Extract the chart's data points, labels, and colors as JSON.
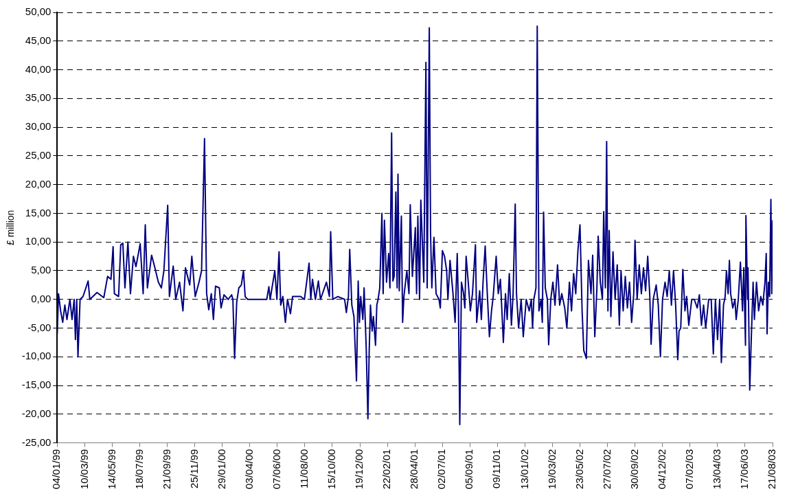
{
  "chart_data": {
    "type": "line",
    "ylabel": "£ million",
    "color": "#000080",
    "grid": "y",
    "legend": false,
    "marker": "none",
    "line_style": "solid",
    "xlim": [
      "1999-01-04",
      "2003-08-21"
    ],
    "xticks": [
      {
        "value": "1999-01-04",
        "label": "04/01/99"
      },
      {
        "value": "1999-03-10",
        "label": "10/03/99"
      },
      {
        "value": "1999-05-14",
        "label": "14/05/99"
      },
      {
        "value": "1999-07-18",
        "label": "18/07/99"
      },
      {
        "value": "1999-09-21",
        "label": "21/09/99"
      },
      {
        "value": "1999-11-25",
        "label": "25/11/99"
      },
      {
        "value": "2000-01-29",
        "label": "29/01/00"
      },
      {
        "value": "2000-04-03",
        "label": "03/04/00"
      },
      {
        "value": "2000-06-07",
        "label": "07/06/00"
      },
      {
        "value": "2000-08-11",
        "label": "11/08/00"
      },
      {
        "value": "2000-10-15",
        "label": "15/10/00"
      },
      {
        "value": "2000-12-19",
        "label": "19/12/00"
      },
      {
        "value": "2001-02-22",
        "label": "22/02/01"
      },
      {
        "value": "2001-04-28",
        "label": "28/04/01"
      },
      {
        "value": "2001-07-02",
        "label": "02/07/01"
      },
      {
        "value": "2001-09-05",
        "label": "05/09/01"
      },
      {
        "value": "2001-11-09",
        "label": "09/11/01"
      },
      {
        "value": "2002-01-13",
        "label": "13/01/02"
      },
      {
        "value": "2002-03-19",
        "label": "19/03/02"
      },
      {
        "value": "2002-05-23",
        "label": "23/05/02"
      },
      {
        "value": "2002-07-27",
        "label": "27/07/02"
      },
      {
        "value": "2002-09-30",
        "label": "30/09/02"
      },
      {
        "value": "2002-12-04",
        "label": "04/12/02"
      },
      {
        "value": "2003-02-07",
        "label": "07/02/03"
      },
      {
        "value": "2003-04-13",
        "label": "13/04/03"
      },
      {
        "value": "2003-06-17",
        "label": "17/06/03"
      },
      {
        "value": "2003-08-21",
        "label": "21/08/03"
      }
    ],
    "ylim": [
      -25,
      50
    ],
    "yticks": [
      {
        "value": -25,
        "label": "-25,00"
      },
      {
        "value": -20,
        "label": "-20,00"
      },
      {
        "value": -15,
        "label": "-15,00"
      },
      {
        "value": -10,
        "label": "-10,00"
      },
      {
        "value": -5,
        "label": "-5,00"
      },
      {
        "value": 0,
        "label": "0,00"
      },
      {
        "value": 5,
        "label": "5,00"
      },
      {
        "value": 10,
        "label": "10,00"
      },
      {
        "value": 15,
        "label": "15,00"
      },
      {
        "value": 20,
        "label": "20,00"
      },
      {
        "value": 25,
        "label": "25,00"
      },
      {
        "value": 30,
        "label": "30,00"
      },
      {
        "value": 35,
        "label": "35,00"
      },
      {
        "value": 40,
        "label": "40,00"
      },
      {
        "value": 45,
        "label": "45,00"
      },
      {
        "value": 50,
        "label": "50,00"
      }
    ],
    "x": [
      "1999-01-04",
      "1999-01-07",
      "1999-01-12",
      "1999-01-17",
      "1999-01-22",
      "1999-01-27",
      "1999-02-03",
      "1999-02-08",
      "1999-02-13",
      "1999-02-16",
      "1999-02-19",
      "1999-02-22",
      "1999-02-27",
      "1999-03-06",
      "1999-03-18",
      "1999-03-22",
      "1999-04-08",
      "1999-04-24",
      "1999-05-03",
      "1999-05-11",
      "1999-05-16",
      "1999-05-19",
      "1999-05-29",
      "1999-06-03",
      "1999-06-08",
      "1999-06-13",
      "1999-06-20",
      "1999-06-26",
      "1999-07-03",
      "1999-07-09",
      "1999-07-19",
      "1999-07-26",
      "1999-07-31",
      "1999-08-05",
      "1999-08-15",
      "1999-08-21",
      "1999-08-31",
      "1999-09-07",
      "1999-09-13",
      "1999-09-22",
      "1999-09-26",
      "1999-10-05",
      "1999-10-11",
      "1999-10-20",
      "1999-10-28",
      "1999-11-03",
      "1999-11-13",
      "1999-11-18",
      "1999-11-26",
      "1999-12-05",
      "1999-12-11",
      "1999-12-18",
      "1999-12-23",
      "1999-12-28",
      "2000-01-03",
      "2000-01-08",
      "2000-01-13",
      "2000-01-22",
      "2000-01-26",
      "2000-02-02",
      "2000-02-12",
      "2000-02-20",
      "2000-02-23",
      "2000-02-27",
      "2000-03-03",
      "2000-03-08",
      "2000-03-14",
      "2000-03-19",
      "2000-03-23",
      "2000-03-29",
      "2000-05-13",
      "2000-05-18",
      "2000-05-21",
      "2000-06-01",
      "2000-06-06",
      "2000-06-11",
      "2000-06-15",
      "2000-06-20",
      "2000-06-26",
      "2000-07-01",
      "2000-07-08",
      "2000-07-13",
      "2000-08-01",
      "2000-08-10",
      "2000-08-21",
      "2000-08-25",
      "2000-08-29",
      "2000-09-05",
      "2000-09-12",
      "2000-09-17",
      "2000-10-01",
      "2000-10-08",
      "2000-10-11",
      "2000-10-16",
      "2000-10-28",
      "2000-11-13",
      "2000-11-17",
      "2000-11-22",
      "2000-11-25",
      "2000-11-30",
      "2000-12-05",
      "2000-12-08",
      "2000-12-11",
      "2000-12-15",
      "2000-12-18",
      "2000-12-21",
      "2000-12-26",
      "2000-12-29",
      "2001-01-03",
      "2001-01-07",
      "2001-01-10",
      "2001-01-13",
      "2001-01-17",
      "2001-01-20",
      "2001-01-25",
      "2001-01-28",
      "2001-01-31",
      "2001-02-04",
      "2001-02-09",
      "2001-02-12",
      "2001-02-15",
      "2001-02-20",
      "2001-02-25",
      "2001-02-28",
      "2001-03-04",
      "2001-03-07",
      "2001-03-10",
      "2001-03-14",
      "2001-03-17",
      "2001-03-19",
      "2001-03-22",
      "2001-03-27",
      "2001-03-30",
      "2001-04-02",
      "2001-04-09",
      "2001-04-14",
      "2001-04-17",
      "2001-04-22",
      "2001-04-29",
      "2001-05-02",
      "2001-05-05",
      "2001-05-09",
      "2001-05-12",
      "2001-05-19",
      "2001-05-24",
      "2001-05-27",
      "2001-06-01",
      "2001-06-04",
      "2001-06-07",
      "2001-06-12",
      "2001-06-17",
      "2001-06-24",
      "2001-06-27",
      "2001-07-02",
      "2001-07-07",
      "2001-07-12",
      "2001-07-15",
      "2001-07-20",
      "2001-07-27",
      "2001-08-01",
      "2001-08-06",
      "2001-08-09",
      "2001-08-12",
      "2001-08-16",
      "2001-08-21",
      "2001-08-24",
      "2001-08-27",
      "2001-09-01",
      "2001-09-06",
      "2001-09-11",
      "2001-09-18",
      "2001-09-21",
      "2001-09-28",
      "2001-10-02",
      "2001-10-06",
      "2001-10-11",
      "2001-10-16",
      "2001-10-21",
      "2001-10-26",
      "2001-10-30",
      "2001-11-06",
      "2001-11-11",
      "2001-11-16",
      "2001-11-23",
      "2001-11-28",
      "2001-12-02",
      "2001-12-07",
      "2001-12-12",
      "2001-12-16",
      "2001-12-21",
      "2001-12-24",
      "2001-12-29",
      "2002-01-04",
      "2002-01-09",
      "2002-01-16",
      "2002-01-23",
      "2002-01-28",
      "2002-01-31",
      "2002-02-03",
      "2002-02-08",
      "2002-02-11",
      "2002-02-15",
      "2002-02-20",
      "2002-02-23",
      "2002-02-26",
      "2002-03-02",
      "2002-03-07",
      "2002-03-10",
      "2002-03-15",
      "2002-03-20",
      "2002-03-25",
      "2002-03-31",
      "2002-04-05",
      "2002-04-10",
      "2002-04-17",
      "2002-04-22",
      "2002-04-28",
      "2002-05-03",
      "2002-05-08",
      "2002-05-13",
      "2002-05-18",
      "2002-05-23",
      "2002-05-28",
      "2002-06-01",
      "2002-06-07",
      "2002-06-10",
      "2002-06-12",
      "2002-06-18",
      "2002-06-22",
      "2002-06-27",
      "2002-07-02",
      "2002-07-05",
      "2002-07-10",
      "2002-07-15",
      "2002-07-18",
      "2002-07-22",
      "2002-07-25",
      "2002-07-28",
      "2002-07-31",
      "2002-08-04",
      "2002-08-09",
      "2002-08-14",
      "2002-08-19",
      "2002-08-24",
      "2002-08-28",
      "2002-09-02",
      "2002-09-07",
      "2002-09-12",
      "2002-09-17",
      "2002-09-22",
      "2002-09-27",
      "2002-09-30",
      "2002-10-05",
      "2002-10-10",
      "2002-10-15",
      "2002-10-20",
      "2002-10-25",
      "2002-10-30",
      "2002-11-04",
      "2002-11-07",
      "2002-11-12",
      "2002-11-19",
      "2002-11-24",
      "2002-11-29",
      "2002-12-04",
      "2002-12-10",
      "2002-12-15",
      "2002-12-20",
      "2002-12-25",
      "2002-12-30",
      "2003-01-04",
      "2003-01-09",
      "2003-01-12",
      "2003-01-16",
      "2003-01-21",
      "2003-01-26",
      "2003-01-30",
      "2003-02-04",
      "2003-02-11",
      "2003-02-17",
      "2003-02-24",
      "2003-03-01",
      "2003-03-06",
      "2003-03-11",
      "2003-03-16",
      "2003-03-23",
      "2003-03-29",
      "2003-04-03",
      "2003-04-08",
      "2003-04-13",
      "2003-04-18",
      "2003-04-22",
      "2003-04-27",
      "2003-05-01",
      "2003-05-04",
      "2003-05-08",
      "2003-05-11",
      "2003-05-14",
      "2003-05-19",
      "2003-05-24",
      "2003-05-27",
      "2003-06-01",
      "2003-06-06",
      "2003-06-11",
      "2003-06-14",
      "2003-06-18",
      "2003-06-19",
      "2003-06-23",
      "2003-06-24",
      "2003-06-28",
      "2003-07-01",
      "2003-07-06",
      "2003-07-09",
      "2003-07-14",
      "2003-07-19",
      "2003-07-24",
      "2003-07-29",
      "2003-08-03",
      "2003-08-06",
      "2003-08-08",
      "2003-08-11",
      "2003-08-14",
      "2003-08-17",
      "2003-08-19",
      "2003-08-21"
    ],
    "values": [
      -6,
      1,
      -2,
      -4,
      -1,
      -3.5,
      0,
      -3.5,
      0,
      -7,
      0,
      -10,
      0,
      0.5,
      3.2,
      0,
      1.2,
      0.3,
      4,
      3.5,
      9.2,
      1,
      0.5,
      9.5,
      9.8,
      2,
      10,
      1,
      7.5,
      5.7,
      9.7,
      1,
      13,
      2,
      7.7,
      6,
      3,
      2,
      5,
      16.4,
      0.5,
      5.8,
      0,
      3,
      -2,
      5.5,
      2.5,
      7.5,
      0.5,
      3,
      5,
      28,
      1,
      -1.8,
      1,
      -3.5,
      2.3,
      2,
      -1.5,
      0.8,
      0,
      0.8,
      0,
      -10.3,
      -0.5,
      2,
      2.5,
      5,
      0.5,
      0,
      0,
      2.2,
      0,
      5,
      0,
      8.3,
      -1,
      0.5,
      -4,
      0,
      -2.5,
      0.5,
      0.5,
      0,
      6.3,
      0,
      3.5,
      0,
      3.2,
      0,
      3,
      0.5,
      11.8,
      0,
      0.5,
      0,
      -2.3,
      0.5,
      8.7,
      -1,
      -3,
      -8.7,
      -14.2,
      3.2,
      -4,
      0.5,
      -3.5,
      2,
      -8.5,
      -20.8,
      -9,
      -1,
      -5.5,
      -3,
      -8,
      -1,
      0,
      2,
      15,
      1,
      13.8,
      3,
      8,
      2,
      29,
      3.2,
      4,
      18.7,
      2,
      21.8,
      1.5,
      14.5,
      -4,
      0.5,
      5,
      1,
      16.5,
      4,
      12.5,
      1,
      14.5,
      0,
      17.3,
      3,
      41.3,
      2,
      47.3,
      11.5,
      2,
      10.8,
      1,
      0,
      -1.5,
      8.5,
      7.5,
      5,
      0,
      6.8,
      1,
      -4,
      8,
      -2.2,
      -21.8,
      3,
      1,
      -1.5,
      7.5,
      3,
      -2,
      1,
      9.5,
      -4,
      1.5,
      -3.5,
      3,
      9.3,
      1,
      -6.5,
      -2,
      0.5,
      7.5,
      1,
      3.5,
      -7.5,
      1,
      -3.5,
      4.5,
      -4.5,
      1,
      16.6,
      1,
      -5,
      0,
      -6.5,
      0,
      -2,
      0,
      -5,
      0,
      2,
      47.6,
      -2,
      0,
      -4,
      15.2,
      2,
      0,
      -7.9,
      0,
      3,
      -1,
      6,
      -1,
      1,
      -1.5,
      -5,
      3,
      -2,
      4.5,
      1,
      8.3,
      13,
      -2,
      -8.9,
      -10.3,
      0,
      6.8,
      1,
      7.7,
      -6.5,
      2,
      11,
      3,
      0,
      15.3,
      2,
      27.5,
      -2,
      12,
      -3,
      8.3,
      0,
      6,
      -4.5,
      5,
      -2,
      4,
      -1.5,
      3,
      -4,
      1,
      10.3,
      0,
      6,
      1,
      5.5,
      1.5,
      7.5,
      0.5,
      -7.8,
      0,
      2.5,
      -1,
      -10,
      0,
      3,
      0.5,
      5,
      -1,
      5,
      -1,
      -10.5,
      -5.5,
      -5,
      5.2,
      -2,
      0.5,
      -4.5,
      0,
      0,
      -1.5,
      0.8,
      -4.5,
      -1,
      -5,
      0,
      0,
      -9.5,
      0,
      -7,
      0,
      -11,
      -1,
      0.5,
      5,
      1,
      6.8,
      1,
      -1.5,
      0,
      -3.5,
      0,
      6.5,
      -2,
      5.5,
      -8,
      14.6,
      0,
      5.5,
      -15.8,
      -8.5,
      3,
      -3.5,
      3,
      -2,
      0.5,
      -1,
      3,
      8,
      -6,
      3,
      0.5,
      17.4,
      1,
      13.8
    ]
  }
}
